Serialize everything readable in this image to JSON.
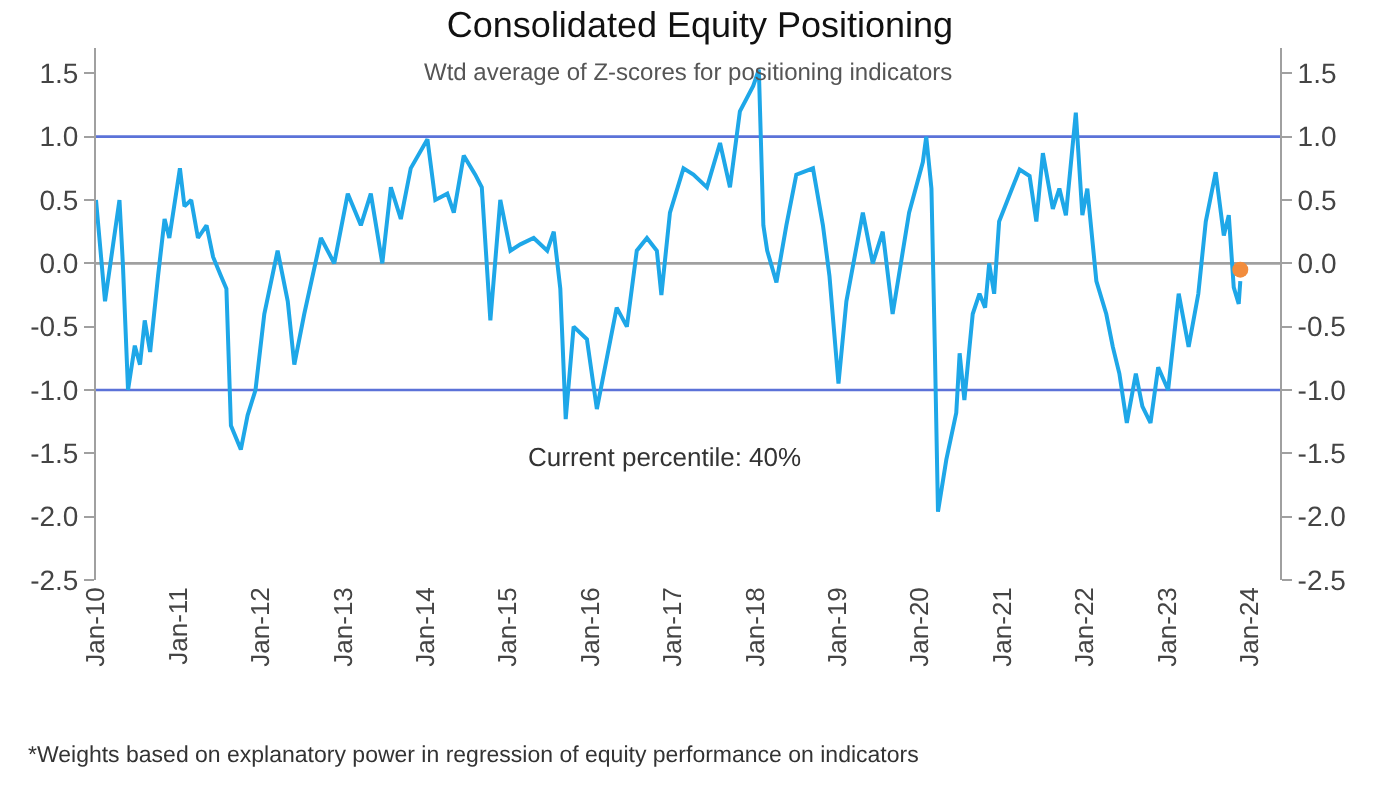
{
  "chart_data": {
    "type": "line",
    "title": "Consolidated Equity Positioning",
    "subtitle": "Wtd average of Z-scores for positioning indicators",
    "annotations": [
      "Current percentile: 40%",
      "*Weights based on explanatory power in regression of equity performance on indicators"
    ],
    "series": [
      {
        "color": "#1ea7e8",
        "x": [
          "2010-01-01",
          "2010-02-10",
          "2010-03-18",
          "2010-04-15",
          "2010-04-30",
          "2010-05-23",
          "2010-06-22",
          "2010-07-15",
          "2010-08-05",
          "2010-08-29",
          "2010-10-03",
          "2010-11-01",
          "2010-11-22",
          "2011-01-08",
          "2011-01-28",
          "2011-02-27",
          "2011-03-29",
          "2011-05-06",
          "2011-06-04",
          "2011-07-09",
          "2011-08-02",
          "2011-08-22",
          "2011-10-05",
          "2011-11-04",
          "2011-12-09",
          "2012-01-17",
          "2012-03-16",
          "2012-04-30",
          "2012-05-29",
          "2012-07-12",
          "2012-09-24",
          "2012-11-22",
          "2013-01-21",
          "2013-03-20",
          "2013-05-03",
          "2013-06-23",
          "2013-07-31",
          "2013-09-13",
          "2013-10-27",
          "2014-01-09",
          "2014-02-13",
          "2014-04-07",
          "2014-05-06",
          "2014-06-19",
          "2014-08-09",
          "2014-09-07",
          "2014-10-15",
          "2014-11-28",
          "2015-01-12",
          "2015-02-25",
          "2015-04-25",
          "2015-06-24",
          "2015-07-23",
          "2015-08-21",
          "2015-09-14",
          "2015-10-19",
          "2015-12-17",
          "2016-01-30",
          "2016-03-14",
          "2016-04-27",
          "2016-06-11",
          "2016-07-25",
          "2016-09-08",
          "2016-10-22",
          "2016-11-11",
          "2016-12-19",
          "2017-02-17",
          "2017-04-02",
          "2017-06-01",
          "2017-07-29",
          "2017-09-11",
          "2017-10-25",
          "2017-12-23",
          "2018-01-17",
          "2018-02-06",
          "2018-02-23",
          "2018-04-05",
          "2018-05-19",
          "2018-07-02",
          "2018-09-14",
          "2018-10-28",
          "2018-11-26",
          "2019-01-05",
          "2019-02-09",
          "2019-04-23",
          "2019-06-06",
          "2019-07-20",
          "2019-09-02",
          "2019-11-14",
          "2020-01-14",
          "2020-01-29",
          "2020-02-21",
          "2020-03-07",
          "2020-03-21",
          "2020-04-27",
          "2020-06-10",
          "2020-06-25",
          "2020-07-16",
          "2020-08-22",
          "2020-09-21",
          "2020-10-16",
          "2020-11-03",
          "2020-11-25",
          "2020-12-17",
          "2021-01-30",
          "2021-03-18",
          "2021-05-01",
          "2021-05-31",
          "2021-06-29",
          "2021-08-12",
          "2021-09-10",
          "2021-10-09",
          "2021-11-22",
          "2021-12-21",
          "2022-01-12",
          "2022-02-21",
          "2022-04-06",
          "2022-05-05",
          "2022-06-03",
          "2022-07-06",
          "2022-08-15",
          "2022-09-13",
          "2022-10-19",
          "2022-11-22",
          "2023-01-05",
          "2023-02-21",
          "2023-04-06",
          "2023-05-19",
          "2023-06-21",
          "2023-08-04",
          "2023-09-09",
          "2023-10-01",
          "2023-10-23",
          "2023-11-14",
          "2023-11-21"
        ],
        "values": [
          0.5,
          -0.3,
          0.15,
          0.5,
          0.0,
          -1.0,
          -0.65,
          -0.8,
          -0.45,
          -0.7,
          -0.1,
          0.35,
          0.2,
          0.75,
          0.45,
          0.5,
          0.2,
          0.3,
          0.05,
          -0.1,
          -0.2,
          -1.28,
          -1.47,
          -1.2,
          -1.0,
          -0.4,
          0.1,
          -0.3,
          -0.8,
          -0.4,
          0.2,
          0.0,
          0.55,
          0.3,
          0.55,
          0.0,
          0.6,
          0.35,
          0.75,
          0.98,
          0.5,
          0.55,
          0.4,
          0.85,
          0.7,
          0.6,
          -0.45,
          0.5,
          0.1,
          0.15,
          0.2,
          0.1,
          0.25,
          -0.2,
          -1.23,
          -0.5,
          -0.6,
          -1.15,
          -0.75,
          -0.35,
          -0.5,
          0.1,
          0.2,
          0.1,
          -0.25,
          0.4,
          0.75,
          0.7,
          0.6,
          0.95,
          0.6,
          1.2,
          1.4,
          1.53,
          0.3,
          0.1,
          -0.15,
          0.3,
          0.7,
          0.75,
          0.3,
          -0.1,
          -0.95,
          -0.3,
          0.4,
          0.0,
          0.25,
          -0.4,
          0.4,
          0.8,
          1.0,
          0.59,
          -0.66,
          -1.96,
          -1.55,
          -1.18,
          -0.71,
          -1.08,
          -0.4,
          -0.24,
          -0.35,
          0.0,
          -0.24,
          0.33,
          0.53,
          0.74,
          0.69,
          0.33,
          0.87,
          0.43,
          0.59,
          0.38,
          1.19,
          0.38,
          0.59,
          -0.14,
          -0.4,
          -0.66,
          -0.87,
          -1.26,
          -0.87,
          -1.13,
          -1.26,
          -0.82,
          -1.0,
          -0.24,
          -0.66,
          -0.24,
          0.33,
          0.72,
          0.22,
          0.38,
          -0.19,
          -0.32,
          -0.14
        ]
      },
      {
        "type": "scatter",
        "color": "#f28c3c",
        "marker": "circle",
        "x": [
          "2023-11-21"
        ],
        "values": [
          -0.05
        ]
      }
    ],
    "xlim": [
      "2010-01-01",
      "2024-05-15"
    ],
    "xticks": [
      {
        "value": "2010-01-01",
        "label": "Jan-10"
      },
      {
        "value": "2011-01-01",
        "label": "Jan-11"
      },
      {
        "value": "2012-01-01",
        "label": "Jan-12"
      },
      {
        "value": "2013-01-01",
        "label": "Jan-13"
      },
      {
        "value": "2014-01-01",
        "label": "Jan-14"
      },
      {
        "value": "2015-01-01",
        "label": "Jan-15"
      },
      {
        "value": "2016-01-01",
        "label": "Jan-16"
      },
      {
        "value": "2017-01-01",
        "label": "Jan-17"
      },
      {
        "value": "2018-01-01",
        "label": "Jan-18"
      },
      {
        "value": "2019-01-01",
        "label": "Jan-19"
      },
      {
        "value": "2020-01-01",
        "label": "Jan-20"
      },
      {
        "value": "2021-01-01",
        "label": "Jan-21"
      },
      {
        "value": "2022-01-01",
        "label": "Jan-22"
      },
      {
        "value": "2023-01-01",
        "label": "Jan-23"
      },
      {
        "value": "2024-01-01",
        "label": "Jan-24"
      }
    ],
    "ylim": [
      -2.5,
      1.7
    ],
    "yticks": [
      -2.5,
      {
        "value": -2,
        "label": "-2.0"
      },
      -1.5,
      {
        "value": -1,
        "label": "-1.0"
      },
      -0.5,
      {
        "value": 0,
        "label": "0.0"
      },
      0.5,
      {
        "value": 1,
        "label": "1.0"
      },
      1.5
    ],
    "y2lim": [
      -2.5,
      1.7
    ],
    "y2ticks": [
      -2.5,
      {
        "value": -2,
        "label": "-2.0"
      },
      -1.5,
      {
        "value": -1,
        "label": "-1.0"
      },
      -0.5,
      {
        "value": 0,
        "label": "0.0"
      },
      0.5,
      {
        "value": 1,
        "label": "1.0"
      },
      1.5
    ],
    "ref_lines": [
      {
        "axis": "y",
        "value": 1,
        "color": "#5b72d8"
      },
      {
        "axis": "y",
        "value": -1,
        "color": "#5b72d8"
      },
      {
        "axis": "y",
        "value": 0,
        "color": "#a0a0a0"
      }
    ],
    "grid": false,
    "marker": "none",
    "line_style": "solid"
  }
}
